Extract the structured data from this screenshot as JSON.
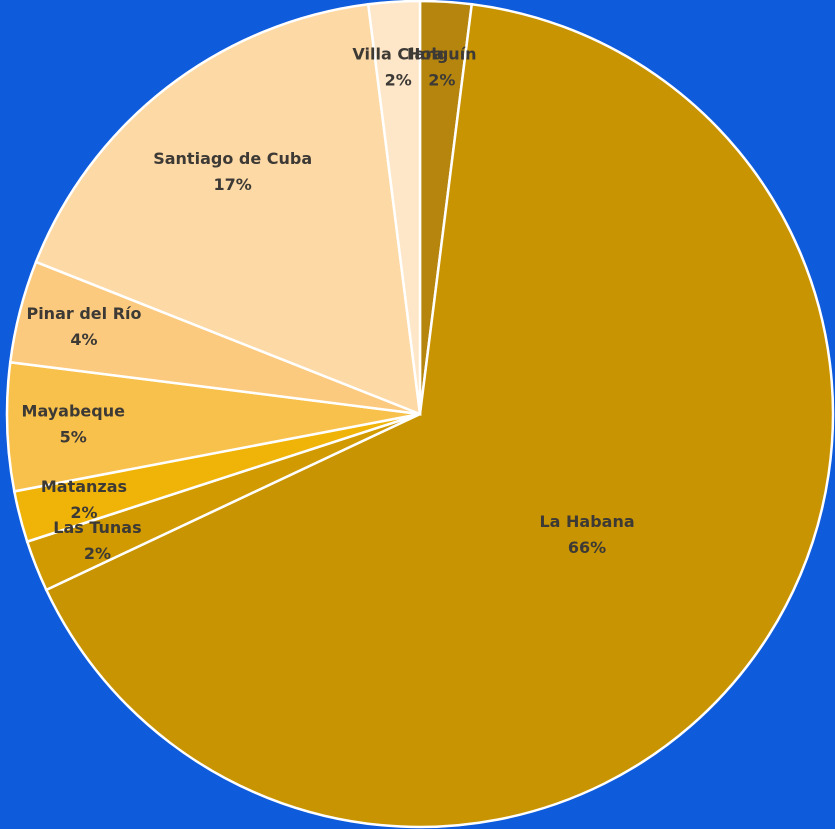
{
  "chart_data": {
    "type": "pie",
    "categories": [
      "Holguín",
      "La Habana",
      "Las Tunas",
      "Matanzas",
      "Mayabeque",
      "Pinar del Río",
      "Santiago de Cuba",
      "Villa Clara"
    ],
    "values": [
      2,
      66,
      2,
      2,
      5,
      4,
      17,
      2
    ],
    "value_labels": [
      "2%",
      "66%",
      "2%",
      "2%",
      "5%",
      "4%",
      "17%",
      "2%"
    ],
    "colors": [
      "#b5850e",
      "#c99401",
      "#d09a00",
      "#f0b409",
      "#f8c14c",
      "#fbca7e",
      "#fdd9a6",
      "#fee7c9"
    ]
  }
}
